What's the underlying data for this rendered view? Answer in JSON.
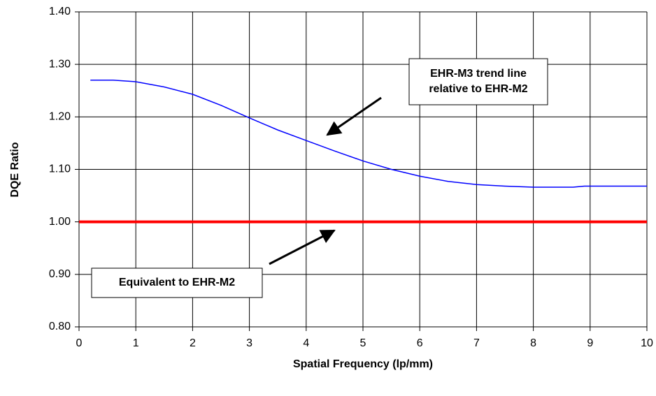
{
  "chart_data": {
    "type": "line",
    "xlabel": "Spatial Frequency (lp/mm)",
    "ylabel": "DQE Ratio",
    "xlim": [
      0,
      10
    ],
    "xticks": [
      0,
      1,
      2,
      3,
      4,
      5,
      6,
      7,
      8,
      9,
      10
    ],
    "ylim": [
      0.8,
      1.4
    ],
    "yticks": [
      {
        "value": 0.8,
        "label": "0.80"
      },
      {
        "value": 0.9,
        "label": "0.90"
      },
      {
        "value": 1.0,
        "label": "1.00"
      },
      {
        "value": 1.1,
        "label": "1.10"
      },
      {
        "value": 1.2,
        "label": "1.20"
      },
      {
        "value": 1.3,
        "label": "1.30"
      },
      {
        "value": 1.4,
        "label": "1.40"
      }
    ],
    "grid": true,
    "series": [
      {
        "color": "#0000ff",
        "x": [
          0.2,
          0.6,
          1,
          1.5,
          2,
          2.5,
          3,
          3.5,
          4,
          4.5,
          5,
          5.5,
          6,
          6.5,
          7,
          7.5,
          8,
          8.7,
          8.9,
          9.5,
          10
        ],
        "values": [
          1.27,
          1.27,
          1.267,
          1.257,
          1.243,
          1.222,
          1.198,
          1.175,
          1.155,
          1.135,
          1.116,
          1.1,
          1.087,
          1.077,
          1.071,
          1.068,
          1.066,
          1.066,
          1.068,
          1.068,
          1.068
        ]
      },
      {
        "color": "#ff0000",
        "x": [
          0,
          10
        ],
        "values": [
          1.0,
          1.0
        ]
      }
    ],
    "annotations": [
      {
        "lines": [
          "EHR-M3 trend line",
          "relative to EHR-M2"
        ]
      },
      {
        "lines": [
          "Equivalent to EHR-M2"
        ]
      }
    ]
  }
}
